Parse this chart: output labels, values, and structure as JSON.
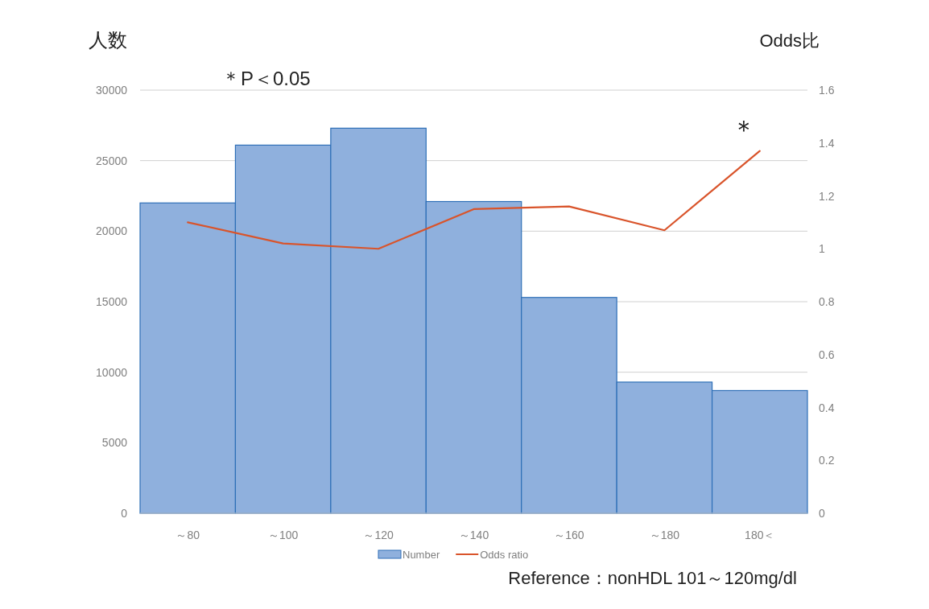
{
  "chart_data": {
    "type": "bar",
    "ylabel": "人数",
    "y2label": "Odds比",
    "categories": [
      "～80",
      "～100",
      "～120",
      "～140",
      "～160",
      "～180",
      "180＜"
    ],
    "series": [
      {
        "name": "Number",
        "color": "#8fb0dd",
        "values": [
          22000,
          26100,
          27300,
          22100,
          15300,
          9300,
          8700
        ]
      },
      {
        "name": "Odds ratio",
        "type": "line",
        "axis": "y2",
        "color": "#d9542b",
        "values": [
          1.1,
          1.02,
          1.0,
          1.15,
          1.16,
          1.07,
          1.37
        ]
      }
    ],
    "ylim": [
      0,
      30000
    ],
    "yticks": [
      0,
      5000,
      10000,
      15000,
      20000,
      25000,
      30000
    ],
    "y2lim": [
      0,
      1.6
    ],
    "y2ticks": [
      0,
      0.2,
      0.4,
      0.6,
      0.8,
      1,
      1.2,
      1.4,
      1.6
    ],
    "grid": "y",
    "legend": "bottom",
    "annotations": [
      "＊P＜0.05",
      "＊",
      "Reference：nonHDL 101～120mg/dl"
    ]
  }
}
